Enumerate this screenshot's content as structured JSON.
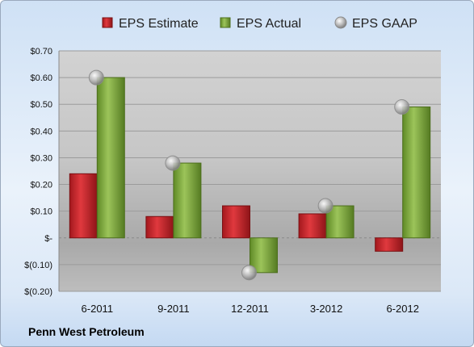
{
  "chart_data": {
    "type": "bar",
    "categories": [
      "6-2011",
      "9-2011",
      "12-2011",
      "3-2012",
      "6-2012"
    ],
    "series": [
      {
        "name": "EPS Estimate",
        "kind": "bar",
        "color": "#c0282d",
        "values": [
          0.24,
          0.08,
          0.12,
          0.09,
          -0.05
        ]
      },
      {
        "name": "EPS Actual",
        "kind": "bar",
        "color": "#7ea63a",
        "values": [
          0.6,
          0.28,
          -0.13,
          0.12,
          0.49
        ]
      },
      {
        "name": "EPS GAAP",
        "kind": "scatter",
        "color": "#a9a9a9",
        "values": [
          0.6,
          0.28,
          -0.13,
          0.12,
          0.49
        ]
      }
    ],
    "ylim": [
      -0.2,
      0.7
    ],
    "yticks": [
      -0.2,
      -0.1,
      0,
      0.1,
      0.2,
      0.3,
      0.4,
      0.5,
      0.6,
      0.7
    ],
    "ytick_labels": [
      "$(0.20)",
      "$(0.10)",
      "$-",
      "$0.10",
      "$0.20",
      "$0.30",
      "$0.40",
      "$0.50",
      "$0.60",
      "$0.70"
    ],
    "grid": true,
    "legend": "top"
  },
  "footer": "Penn West Petroleum"
}
